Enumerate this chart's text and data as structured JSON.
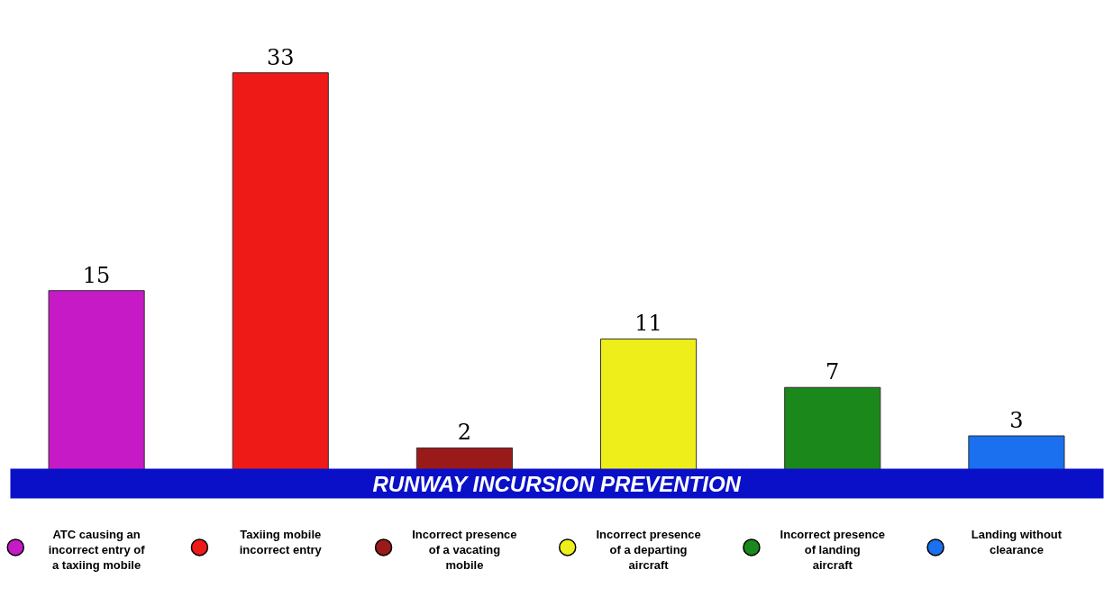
{
  "chart_data": {
    "type": "bar",
    "title": "RUNWAY INCURSION PREVENTION",
    "categories": [
      "ATC causing an incorrect entry of a taxiing mobile",
      "Taxiing mobile incorrect entry",
      "Incorrect presence of a vacating mobile",
      "Incorrect presence of a departing aircraft",
      "Incorrect presence of landing aircraft",
      "Landing without clearance"
    ],
    "values": [
      15,
      33,
      2,
      11,
      7,
      3
    ],
    "colors": [
      "#c61ac6",
      "#ee1a17",
      "#9a1a1a",
      "#eeee1a",
      "#1a881a",
      "#1a70ee"
    ],
    "data_labels": true
  }
}
